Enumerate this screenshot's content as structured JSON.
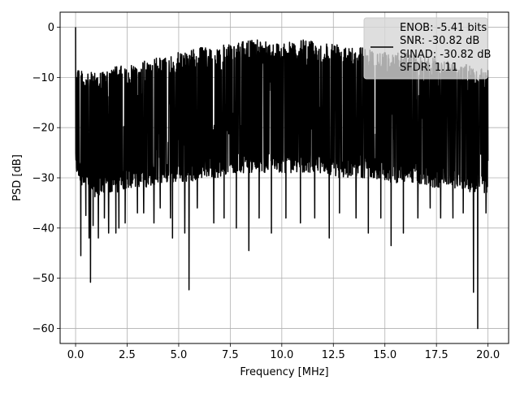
{
  "chart_data": {
    "type": "line",
    "title": "",
    "xlabel": "Frequency [MHz]",
    "ylabel": "PSD [dB]",
    "xlim": [
      -0.75,
      21.0
    ],
    "ylim": [
      -63,
      3
    ],
    "xticks": [
      0.0,
      2.5,
      5.0,
      7.5,
      10.0,
      12.5,
      15.0,
      17.5,
      20.0
    ],
    "xtick_labels": [
      "0.0",
      "2.5",
      "5.0",
      "7.5",
      "10.0",
      "12.5",
      "15.0",
      "17.5",
      "20.0"
    ],
    "yticks": [
      0,
      -10,
      -20,
      -30,
      -40,
      -50,
      -60
    ],
    "ytick_labels": [
      "0",
      "−10",
      "−20",
      "−30",
      "−40",
      "−50",
      "−60"
    ],
    "grid": true,
    "legend_position": "top-right",
    "legend_entries": [
      "ENOB: -5.41 bits",
      "SNR: -30.82 dB",
      "SINAD: -30.82 dB",
      "SFDR: 1.11"
    ],
    "series": [
      {
        "color": "#000000",
        "x_range": [
          0.0,
          20.0
        ],
        "num_points": 2048,
        "upper_envelope": [
          [
            0.0,
            -6.5
          ],
          [
            0.5,
            -9.5
          ],
          [
            1.0,
            -8.5
          ],
          [
            1.5,
            -9.0
          ],
          [
            2.0,
            -7.5
          ],
          [
            2.5,
            -8.0
          ],
          [
            3.0,
            -7.0
          ],
          [
            3.5,
            -6.5
          ],
          [
            4.0,
            -6.0
          ],
          [
            4.5,
            -6.0
          ],
          [
            5.0,
            -5.0
          ],
          [
            5.5,
            -4.5
          ],
          [
            6.0,
            -4.0
          ],
          [
            6.5,
            -4.0
          ],
          [
            7.0,
            -3.5
          ],
          [
            7.5,
            -3.5
          ],
          [
            8.0,
            -3.0
          ],
          [
            8.5,
            -2.5
          ],
          [
            9.0,
            -2.0
          ],
          [
            9.5,
            -3.0
          ],
          [
            10.0,
            -3.0
          ],
          [
            10.5,
            -3.0
          ],
          [
            11.0,
            -2.5
          ],
          [
            11.5,
            -2.5
          ],
          [
            12.0,
            -3.0
          ],
          [
            12.5,
            -3.0
          ],
          [
            13.0,
            -3.0
          ],
          [
            13.5,
            -3.5
          ],
          [
            14.0,
            -4.0
          ],
          [
            14.5,
            -4.5
          ],
          [
            15.0,
            -5.0
          ],
          [
            15.5,
            -5.0
          ],
          [
            16.0,
            -5.0
          ],
          [
            16.5,
            -5.5
          ],
          [
            17.0,
            -6.0
          ],
          [
            17.5,
            -6.0
          ],
          [
            18.0,
            -6.5
          ],
          [
            18.5,
            -7.0
          ],
          [
            19.0,
            -7.5
          ],
          [
            19.5,
            -8.0
          ],
          [
            20.0,
            -8.5
          ]
        ],
        "lower_envelope": [
          [
            0.0,
            -29.0
          ],
          [
            0.5,
            -33.0
          ],
          [
            1.0,
            -34.0
          ],
          [
            1.5,
            -33.0
          ],
          [
            2.0,
            -33.0
          ],
          [
            2.5,
            -32.0
          ],
          [
            3.0,
            -32.0
          ],
          [
            3.5,
            -32.0
          ],
          [
            4.0,
            -31.0
          ],
          [
            4.5,
            -31.0
          ],
          [
            5.0,
            -31.0
          ],
          [
            5.5,
            -31.0
          ],
          [
            6.0,
            -30.0
          ],
          [
            6.5,
            -30.0
          ],
          [
            7.0,
            -30.0
          ],
          [
            7.5,
            -29.0
          ],
          [
            8.0,
            -29.0
          ],
          [
            8.5,
            -29.0
          ],
          [
            9.0,
            -29.0
          ],
          [
            9.5,
            -29.0
          ],
          [
            10.0,
            -29.0
          ],
          [
            10.5,
            -29.0
          ],
          [
            11.0,
            -29.0
          ],
          [
            11.5,
            -29.0
          ],
          [
            12.0,
            -29.0
          ],
          [
            12.5,
            -30.0
          ],
          [
            13.0,
            -30.0
          ],
          [
            13.5,
            -30.0
          ],
          [
            14.0,
            -30.0
          ],
          [
            14.5,
            -30.0
          ],
          [
            15.0,
            -31.0
          ],
          [
            15.5,
            -31.0
          ],
          [
            16.0,
            -31.0
          ],
          [
            16.5,
            -31.0
          ],
          [
            17.0,
            -32.0
          ],
          [
            17.5,
            -32.0
          ],
          [
            18.0,
            -32.0
          ],
          [
            18.5,
            -32.0
          ],
          [
            19.0,
            -33.0
          ],
          [
            19.5,
            -33.0
          ],
          [
            20.0,
            -33.0
          ]
        ],
        "peaks": [
          [
            0.0,
            0.0
          ],
          [
            0.03,
            -10.0
          ]
        ],
        "dips": [
          [
            0.25,
            -45.5
          ],
          [
            0.5,
            -37.5
          ],
          [
            0.65,
            -42.0
          ],
          [
            0.72,
            -50.8
          ],
          [
            0.85,
            -39.5
          ],
          [
            1.1,
            -42.0
          ],
          [
            1.4,
            -38.0
          ],
          [
            1.6,
            -41.0
          ],
          [
            1.95,
            -41.0
          ],
          [
            2.1,
            -40.0
          ],
          [
            2.4,
            -39.0
          ],
          [
            3.0,
            -37.0
          ],
          [
            3.3,
            -37.0
          ],
          [
            3.8,
            -39.0
          ],
          [
            4.1,
            -36.0
          ],
          [
            4.6,
            -38.0
          ],
          [
            4.7,
            -42.0
          ],
          [
            5.3,
            -41.0
          ],
          [
            5.5,
            -52.3
          ],
          [
            5.9,
            -36.0
          ],
          [
            6.7,
            -39.0
          ],
          [
            7.2,
            -38.0
          ],
          [
            7.8,
            -40.0
          ],
          [
            8.4,
            -44.5
          ],
          [
            8.9,
            -38.0
          ],
          [
            9.5,
            -41.0
          ],
          [
            10.2,
            -38.0
          ],
          [
            10.9,
            -39.0
          ],
          [
            11.6,
            -38.0
          ],
          [
            12.3,
            -42.0
          ],
          [
            12.8,
            -37.0
          ],
          [
            13.6,
            -38.0
          ],
          [
            14.2,
            -41.0
          ],
          [
            14.8,
            -38.0
          ],
          [
            15.3,
            -43.5
          ],
          [
            15.9,
            -41.0
          ],
          [
            16.6,
            -38.0
          ],
          [
            17.2,
            -36.0
          ],
          [
            17.7,
            -38.0
          ],
          [
            18.3,
            -38.0
          ],
          [
            18.8,
            -37.0
          ],
          [
            19.3,
            -52.8
          ],
          [
            19.5,
            -60.0
          ],
          [
            19.9,
            -37.0
          ]
        ]
      }
    ]
  }
}
